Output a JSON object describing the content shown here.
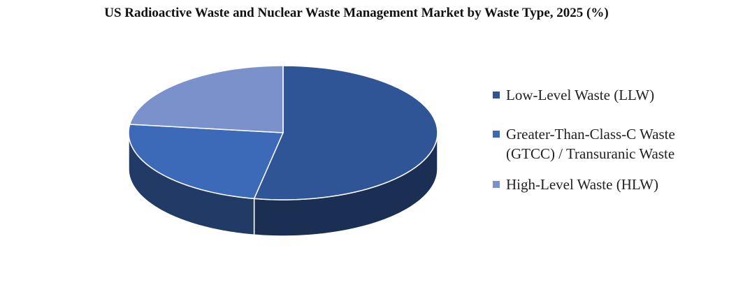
{
  "chart_data": {
    "type": "pie",
    "title": "US Radioactive Waste and Nuclear Waste Management Market by Waste Type, 2025 (%)",
    "categories": [
      "Low-Level Waste (LLW)",
      "Greater-Than-Class-C Waste (GTCC) / Transuranic Waste",
      "High-Level Waste (HLW)"
    ],
    "values": [
      53,
      24,
      23
    ],
    "colors": [
      "#2f5597",
      "#3d69b9",
      "#7b91cc"
    ],
    "legend": "right"
  }
}
